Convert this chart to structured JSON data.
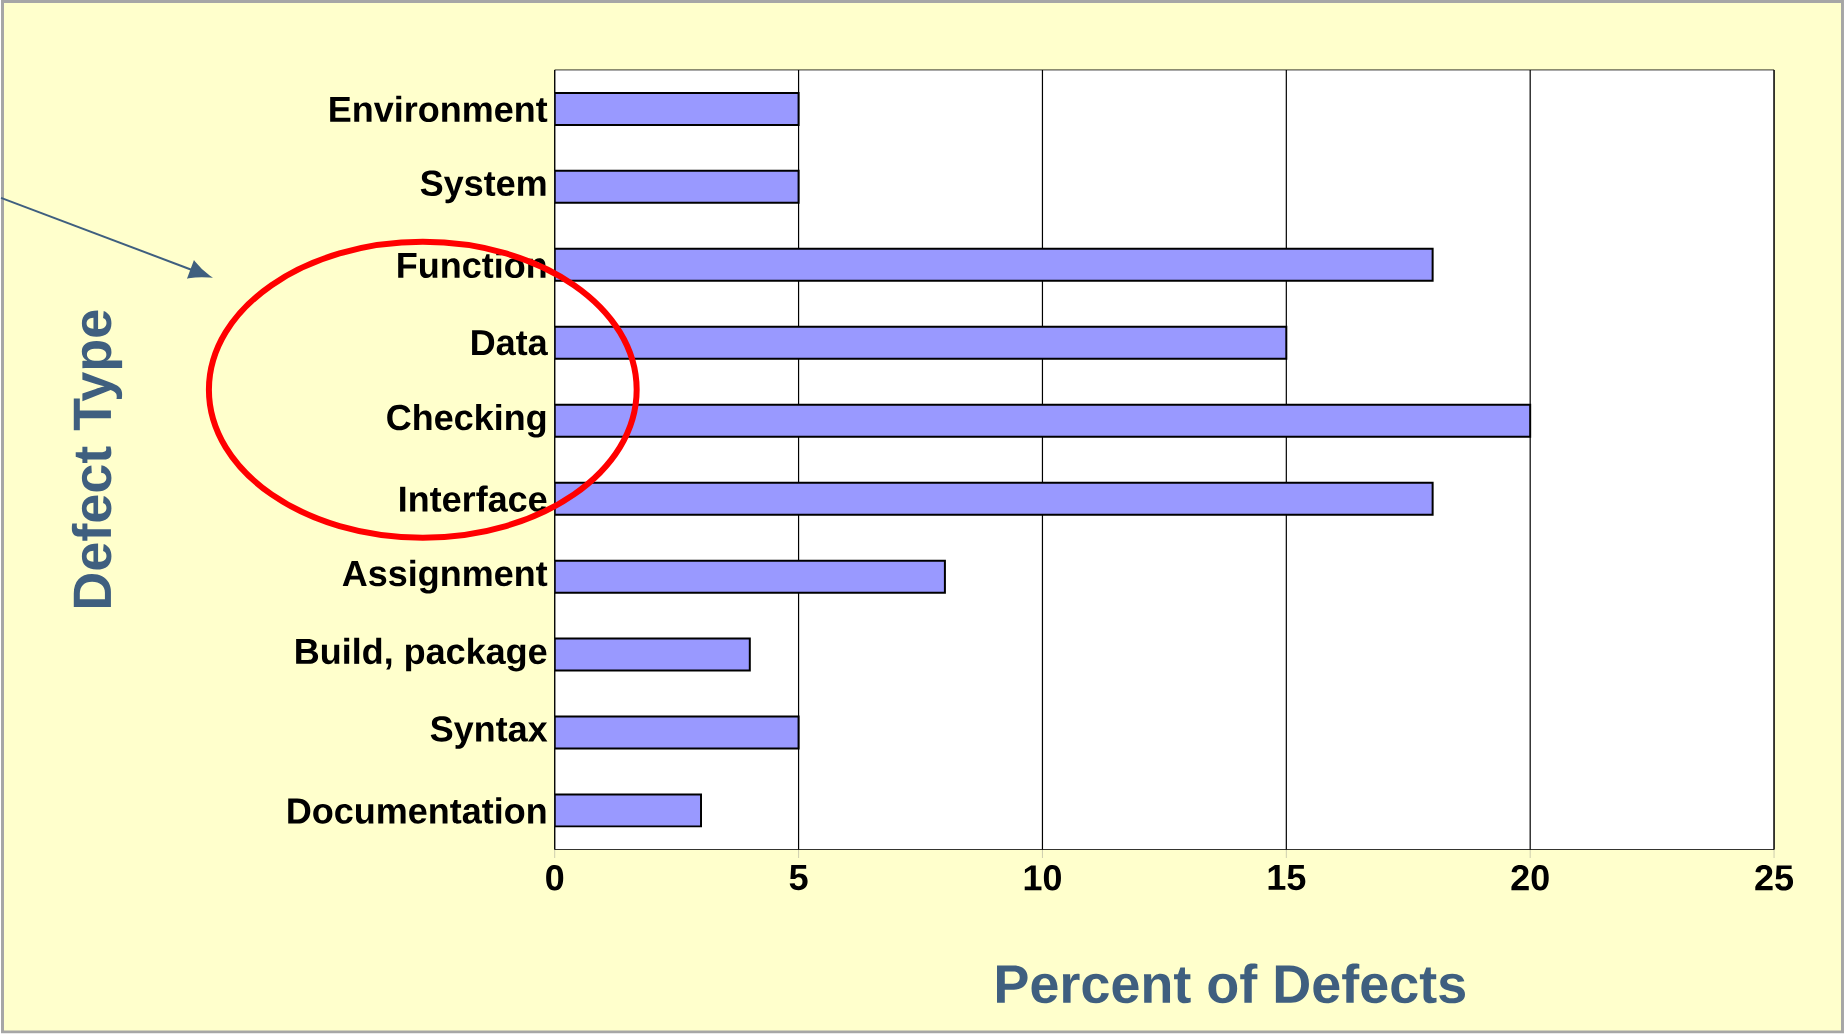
{
  "chart_data": {
    "type": "bar",
    "orientation": "horizontal",
    "xlabel": "Percent of Defects",
    "ylabel": "Defect Type",
    "categories": [
      "Environment",
      "System",
      "Function",
      "Data",
      "Checking",
      "Interface",
      "Assignment",
      "Build, package",
      "Syntax",
      "Documentation"
    ],
    "values": [
      5,
      5,
      18,
      15,
      20,
      18,
      8,
      4,
      5,
      3
    ],
    "color": "#9999ff",
    "xlim": [
      0,
      25
    ],
    "xticks": [
      0,
      5,
      10,
      15,
      20,
      25
    ],
    "grid": "x"
  }
}
